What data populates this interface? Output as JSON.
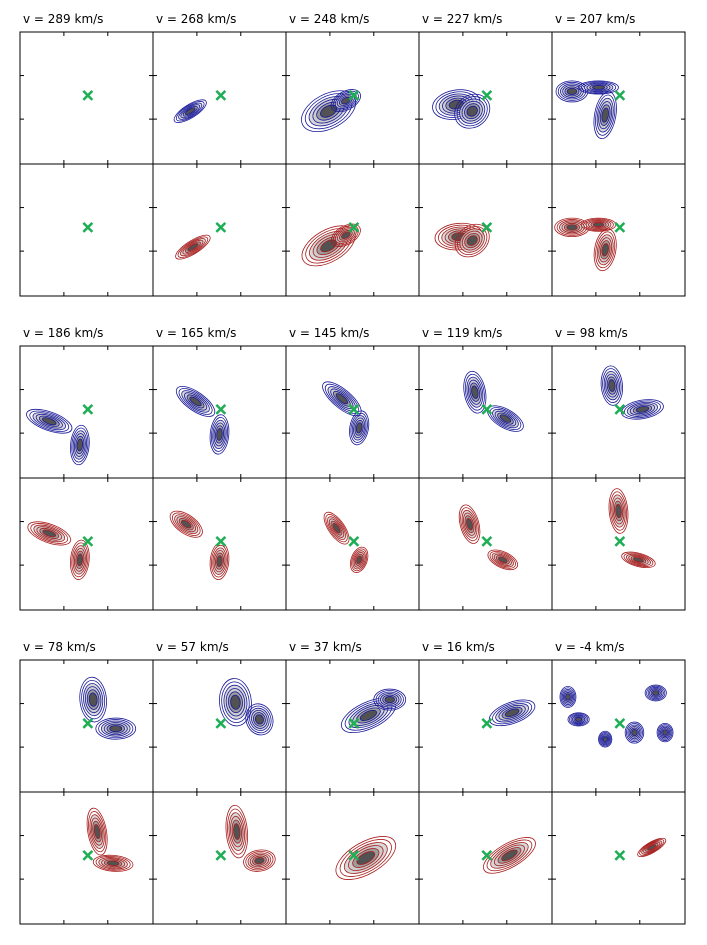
{
  "figure": {
    "colors": {
      "approaching": "#1a1a9a",
      "receding": "#a81d1d",
      "marker": "#1fae55",
      "frame": "#000000",
      "gray_fill": "#b8b8b8"
    },
    "marker_icon": "green-x-marker",
    "channels": [
      {
        "label": "v = 289 km/s"
      },
      {
        "label": "v = 268 km/s"
      },
      {
        "label": "v = 248 km/s"
      },
      {
        "label": "v = 227 km/s"
      },
      {
        "label": "v = 207 km/s"
      },
      {
        "label": "v = 186 km/s"
      },
      {
        "label": "v = 165 km/s"
      },
      {
        "label": "v = 145 km/s"
      },
      {
        "label": "v = 119 km/s"
      },
      {
        "label": "v = 98 km/s"
      },
      {
        "label": "v = 78 km/s"
      },
      {
        "label": "v = 57 km/s"
      },
      {
        "label": "v = 37 km/s"
      },
      {
        "label": "v = 16 km/s"
      },
      {
        "label": "v = -4 km/s"
      }
    ]
  }
}
